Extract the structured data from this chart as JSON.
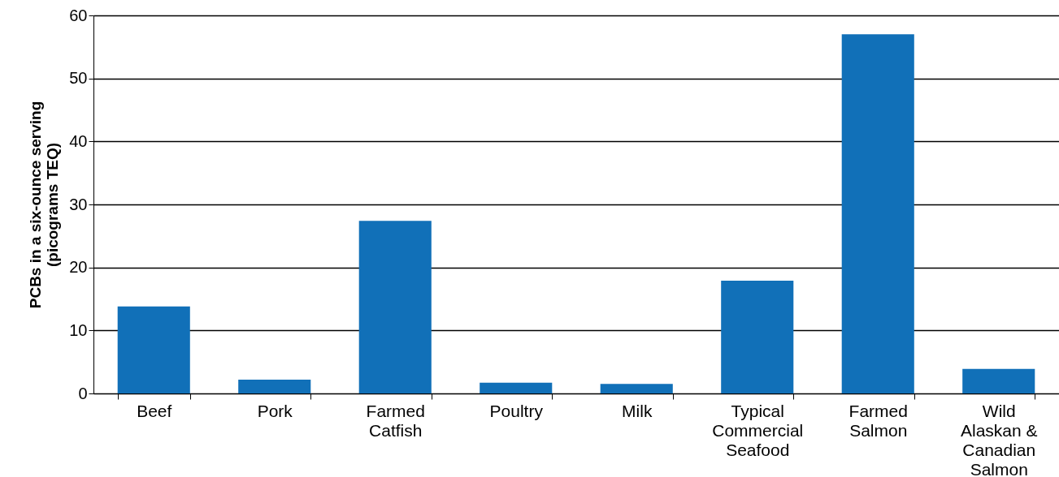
{
  "chart_data": {
    "type": "bar",
    "ylabel": "PCBs in a six-ounce serving (picograms TEQ)",
    "categories": [
      "Beef",
      "Pork",
      "Farmed Catfish",
      "Poultry",
      "Milk",
      "Typical Commercial Seafood",
      "Farmed Salmon",
      "Wild Alaskan & Canadian Salmon"
    ],
    "values": [
      13.8,
      2.2,
      27.4,
      1.7,
      1.5,
      17.9,
      57.0,
      3.9
    ],
    "color": "#1170b8",
    "ylim": [
      0,
      60
    ],
    "yticks": [
      0,
      10,
      20,
      30,
      40,
      50,
      60
    ],
    "grid": "y"
  }
}
